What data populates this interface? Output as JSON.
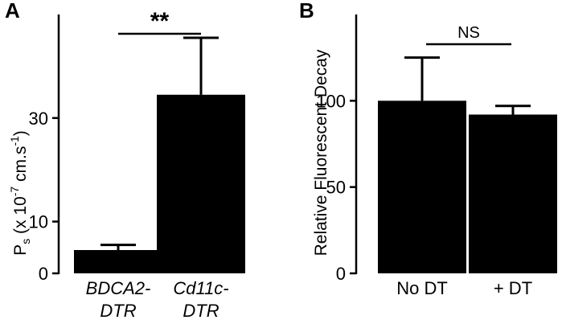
{
  "panels": [
    {
      "letter": "A",
      "ylabel_main": "P",
      "ylabel_sub": "s",
      "ylabel_rest": " (x 10",
      "ylabel_exp": "-7",
      "ylabel_unit": " cm.s",
      "ylabel_unit_exp": "-1",
      "ylabel_close": ")",
      "significance": "**"
    },
    {
      "letter": "B",
      "ylabel": "Relative Fluorescent Decay",
      "significance": "NS"
    }
  ],
  "chart_data": [
    {
      "type": "bar",
      "panel": "A",
      "categories": [
        {
          "line1": "BDCA2-",
          "line2": "DTR"
        },
        {
          "line1": "Cd11c-",
          "line2": "DTR"
        }
      ],
      "values": [
        4.5,
        34.5
      ],
      "error_upper": [
        5.5,
        45.5
      ],
      "ylim": [
        0,
        50
      ],
      "yticks": [
        "0",
        "10",
        "30"
      ],
      "ytick_values": [
        0,
        10,
        30
      ],
      "ylabel": "Ps (x 10-7 cm.s-1)",
      "significance": "**",
      "italic_categories": true
    },
    {
      "type": "bar",
      "panel": "B",
      "categories": [
        {
          "line1": "No DT",
          "line2": ""
        },
        {
          "line1": "+ DT",
          "line2": ""
        }
      ],
      "values": [
        100,
        92
      ],
      "error_upper": [
        125,
        97
      ],
      "ylim": [
        0,
        150
      ],
      "yticks": [
        "0",
        "50",
        "100"
      ],
      "ytick_values": [
        0,
        50,
        100
      ],
      "ylabel": "Relative Fluorescent Decay",
      "significance": "NS",
      "italic_categories": false
    }
  ]
}
